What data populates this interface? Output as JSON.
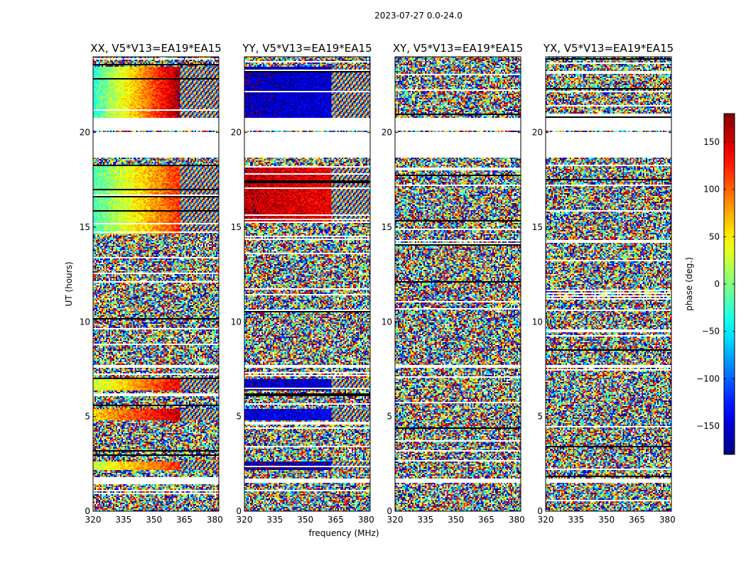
{
  "chart_data": {
    "type": "heatmap",
    "suptitle": "2023-07-27 0.0-24.0",
    "xlabel": "frequency (MHz)",
    "ylabel": "UT (hours)",
    "xlim": [
      320,
      382
    ],
    "ylim": [
      0,
      24
    ],
    "xticks": [
      320,
      335,
      350,
      365,
      380
    ],
    "yticks": [
      0,
      5,
      10,
      15,
      20
    ],
    "panels": [
      {
        "title": "XX, V5*V13=EA19*EA15",
        "profile": "coherent-warm",
        "coherent_blocks": [
          {
            "ut_start": 20.8,
            "ut_end": 23.5,
            "phase_low_freq": -30,
            "phase_high_freq": 170
          },
          {
            "ut_start": 14.6,
            "ut_end": 18.2,
            "phase_low_freq": -20,
            "phase_high_freq": 120
          },
          {
            "ut_start": 6.4,
            "ut_end": 7.0,
            "phase_low_freq": 20,
            "phase_high_freq": 140
          },
          {
            "ut_start": 4.8,
            "ut_end": 5.4,
            "phase_low_freq": 60,
            "phase_high_freq": 160
          },
          {
            "ut_start": 2.2,
            "ut_end": 2.6,
            "phase_low_freq": 20,
            "phase_high_freq": 120
          }
        ]
      },
      {
        "title": "YY, V5*V13=EA19*EA15",
        "profile": "coherent-cold",
        "coherent_blocks": [
          {
            "ut_start": 20.8,
            "ut_end": 23.5,
            "phase_low_freq": -160,
            "phase_high_freq": -150
          },
          {
            "ut_start": 15.2,
            "ut_end": 18.2,
            "phase_low_freq": 160,
            "phase_high_freq": 140
          },
          {
            "ut_start": 6.4,
            "ut_end": 7.0,
            "phase_low_freq": -160,
            "phase_high_freq": -150
          },
          {
            "ut_start": 4.8,
            "ut_end": 5.4,
            "phase_low_freq": -150,
            "phase_high_freq": -140
          },
          {
            "ut_start": 2.2,
            "ut_end": 2.6,
            "phase_low_freq": -170,
            "phase_high_freq": -160
          }
        ]
      },
      {
        "title": "XY, V5*V13=EA19*EA15",
        "profile": "noise",
        "coherent_blocks": []
      },
      {
        "title": "YX, V5*V13=EA19*EA15",
        "profile": "noise",
        "coherent_blocks": []
      }
    ],
    "data_gaps_ut": [
      [
        18.7,
        20.0
      ],
      [
        20.1,
        20.8
      ],
      [
        1.5,
        1.7
      ],
      [
        7.6,
        7.7
      ]
    ],
    "colorbar": {
      "label": "phase (deg.)",
      "range": [
        -180,
        180
      ],
      "ticks": [
        -150,
        -100,
        -50,
        0,
        50,
        100,
        150
      ],
      "tick_labels": [
        "−150",
        "−100",
        "−50",
        "0",
        "50",
        "100",
        "150"
      ],
      "colormap": "jet"
    }
  }
}
